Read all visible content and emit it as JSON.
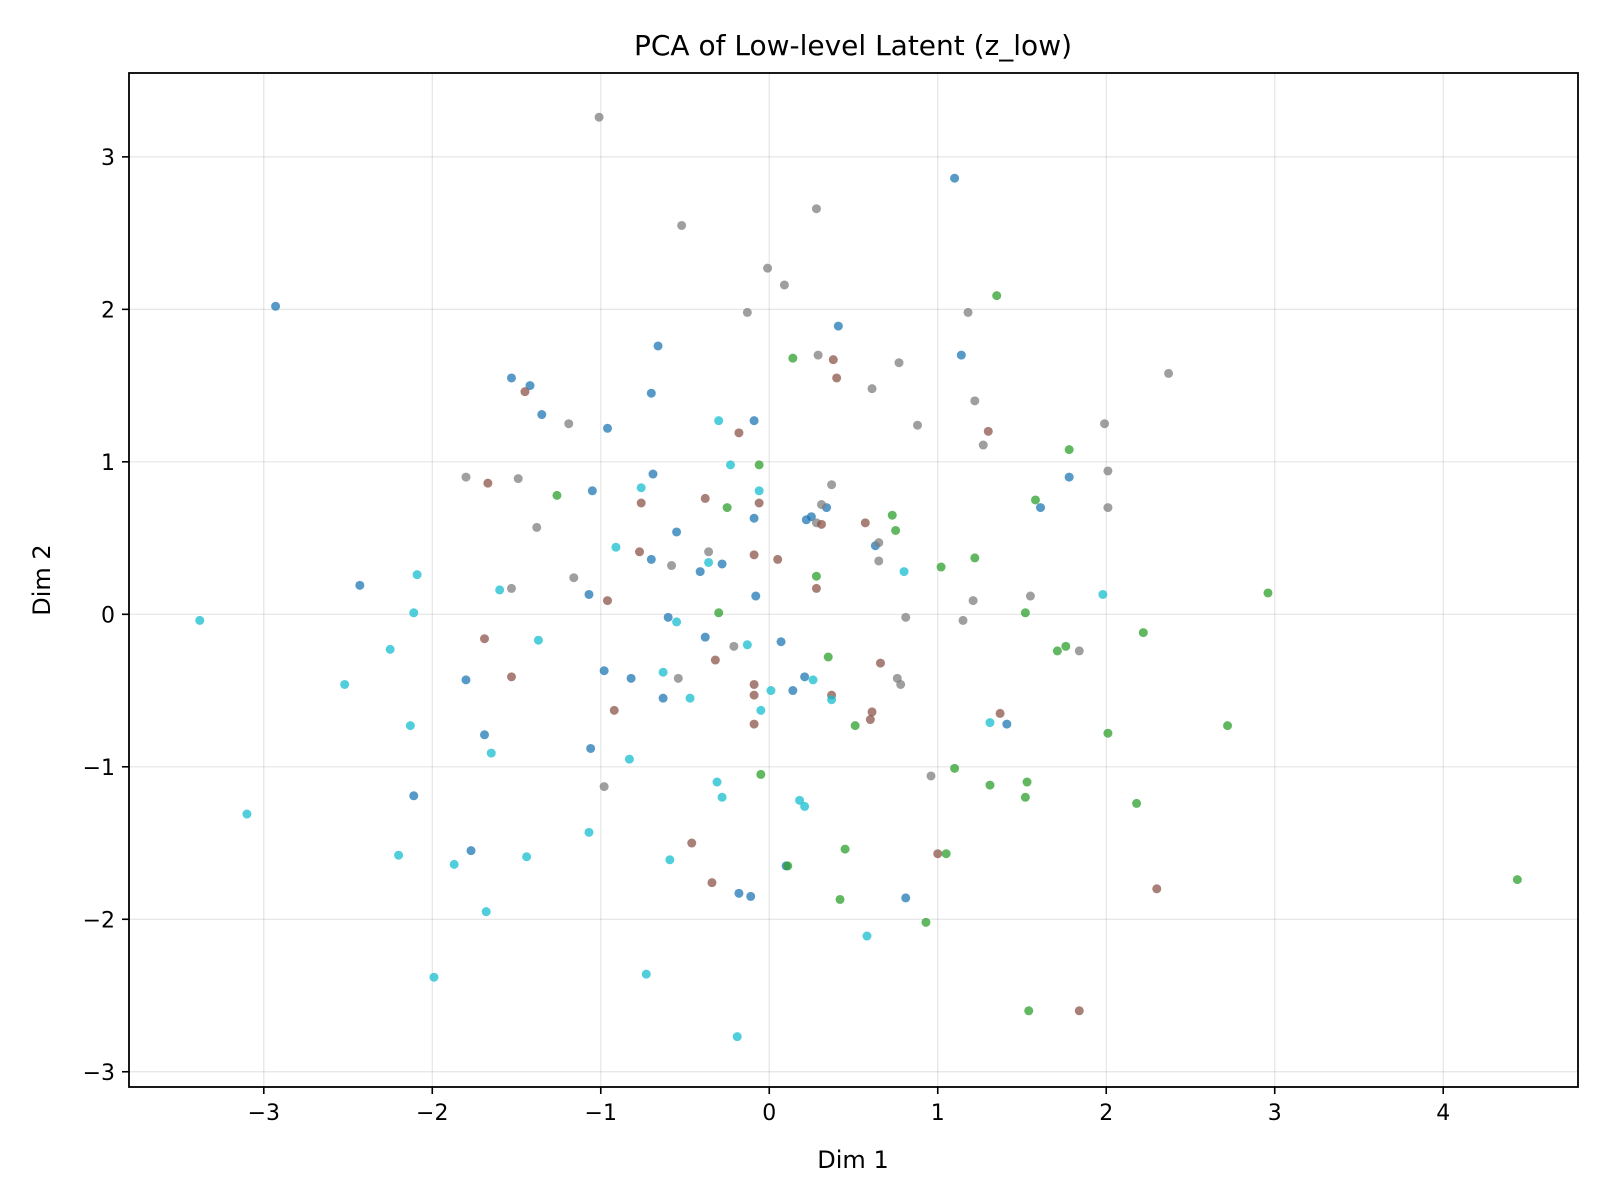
{
  "chart_data": {
    "type": "scatter",
    "title": "PCA of Low-level Latent (z_low)",
    "xlabel": "Dim 1",
    "ylabel": "Dim 2",
    "xlim": [
      -3.8,
      4.8
    ],
    "ylim": [
      -3.1,
      3.55
    ],
    "xticks": [
      -3,
      -2,
      -1,
      0,
      1,
      2,
      3,
      4
    ],
    "yticks": [
      -3,
      -2,
      -1,
      0,
      1,
      2,
      3
    ],
    "grid": true,
    "legend": "none",
    "series": [
      {
        "color": "#1f77b4",
        "points": [
          [
            -2.93,
            2.02
          ],
          [
            1.1,
            2.86
          ],
          [
            0.41,
            1.89
          ],
          [
            -0.66,
            1.76
          ],
          [
            1.14,
            1.7
          ],
          [
            -1.53,
            1.55
          ],
          [
            -1.42,
            1.5
          ],
          [
            -0.7,
            1.45
          ],
          [
            -1.35,
            1.31
          ],
          [
            -0.96,
            1.22
          ],
          [
            -0.09,
            1.27
          ],
          [
            -0.69,
            0.92
          ],
          [
            -1.05,
            0.81
          ],
          [
            1.78,
            0.9
          ],
          [
            1.61,
            0.7
          ],
          [
            0.34,
            0.7
          ],
          [
            0.25,
            0.64
          ],
          [
            0.22,
            0.62
          ],
          [
            -0.09,
            0.63
          ],
          [
            0.63,
            0.45
          ],
          [
            -0.55,
            0.54
          ],
          [
            -0.7,
            0.36
          ],
          [
            -0.28,
            0.33
          ],
          [
            -0.41,
            0.28
          ],
          [
            -2.43,
            0.19
          ],
          [
            -1.07,
            0.13
          ],
          [
            -0.08,
            0.12
          ],
          [
            -0.6,
            -0.02
          ],
          [
            -0.38,
            -0.15
          ],
          [
            0.07,
            -0.18
          ],
          [
            -1.8,
            -0.43
          ],
          [
            -0.98,
            -0.37
          ],
          [
            -0.82,
            -0.42
          ],
          [
            0.21,
            -0.41
          ],
          [
            0.14,
            -0.5
          ],
          [
            -0.63,
            -0.55
          ],
          [
            1.41,
            -0.72
          ],
          [
            -1.69,
            -0.79
          ],
          [
            -1.06,
            -0.88
          ],
          [
            -2.11,
            -1.19
          ],
          [
            -1.77,
            -1.55
          ],
          [
            0.1,
            -1.65
          ],
          [
            0.81,
            -1.86
          ],
          [
            -0.18,
            -1.83
          ],
          [
            -0.11,
            -1.85
          ]
        ]
      },
      {
        "color": "#7f7f7f",
        "points": [
          [
            -1.01,
            3.26
          ],
          [
            -0.52,
            2.55
          ],
          [
            0.28,
            2.66
          ],
          [
            -0.01,
            2.27
          ],
          [
            0.09,
            2.16
          ],
          [
            -0.13,
            1.98
          ],
          [
            1.18,
            1.98
          ],
          [
            0.29,
            1.7
          ],
          [
            0.77,
            1.65
          ],
          [
            2.37,
            1.58
          ],
          [
            0.61,
            1.48
          ],
          [
            1.22,
            1.4
          ],
          [
            -1.19,
            1.25
          ],
          [
            0.88,
            1.24
          ],
          [
            1.99,
            1.25
          ],
          [
            1.27,
            1.11
          ],
          [
            -1.8,
            0.9
          ],
          [
            -1.49,
            0.89
          ],
          [
            2.01,
            0.94
          ],
          [
            0.37,
            0.85
          ],
          [
            0.31,
            0.72
          ],
          [
            2.01,
            0.7
          ],
          [
            0.28,
            0.6
          ],
          [
            0.65,
            0.47
          ],
          [
            -1.38,
            0.57
          ],
          [
            -0.36,
            0.41
          ],
          [
            0.65,
            0.35
          ],
          [
            -0.58,
            0.32
          ],
          [
            -1.16,
            0.24
          ],
          [
            -1.53,
            0.17
          ],
          [
            1.55,
            0.12
          ],
          [
            1.21,
            0.09
          ],
          [
            0.81,
            -0.02
          ],
          [
            1.15,
            -0.04
          ],
          [
            -0.21,
            -0.21
          ],
          [
            1.84,
            -0.24
          ],
          [
            -0.54,
            -0.42
          ],
          [
            0.76,
            -0.42
          ],
          [
            0.78,
            -0.46
          ],
          [
            -0.98,
            -1.13
          ],
          [
            0.96,
            -1.06
          ]
        ]
      },
      {
        "color": "#2ca02c",
        "points": [
          [
            1.35,
            2.09
          ],
          [
            0.14,
            1.68
          ],
          [
            1.78,
            1.08
          ],
          [
            -0.06,
            0.98
          ],
          [
            -1.26,
            0.78
          ],
          [
            -0.25,
            0.7
          ],
          [
            1.58,
            0.75
          ],
          [
            0.73,
            0.65
          ],
          [
            0.75,
            0.55
          ],
          [
            1.22,
            0.37
          ],
          [
            1.02,
            0.31
          ],
          [
            0.28,
            0.25
          ],
          [
            2.96,
            0.14
          ],
          [
            -0.3,
            0.01
          ],
          [
            1.52,
            0.01
          ],
          [
            2.22,
            -0.12
          ],
          [
            1.76,
            -0.21
          ],
          [
            1.71,
            -0.24
          ],
          [
            0.35,
            -0.28
          ],
          [
            2.72,
            -0.73
          ],
          [
            0.51,
            -0.73
          ],
          [
            2.01,
            -0.78
          ],
          [
            1.1,
            -1.01
          ],
          [
            -0.05,
            -1.05
          ],
          [
            1.31,
            -1.12
          ],
          [
            1.53,
            -1.1
          ],
          [
            1.52,
            -1.2
          ],
          [
            2.18,
            -1.24
          ],
          [
            0.45,
            -1.54
          ],
          [
            1.05,
            -1.57
          ],
          [
            4.44,
            -1.74
          ],
          [
            0.42,
            -1.87
          ],
          [
            0.93,
            -2.02
          ],
          [
            1.54,
            -2.6
          ],
          [
            0.11,
            -1.65
          ]
        ]
      },
      {
        "color": "#8c564b",
        "points": [
          [
            0.38,
            1.67
          ],
          [
            0.4,
            1.55
          ],
          [
            -1.45,
            1.46
          ],
          [
            -0.18,
            1.19
          ],
          [
            1.3,
            1.2
          ],
          [
            -1.67,
            0.86
          ],
          [
            -0.38,
            0.76
          ],
          [
            -0.76,
            0.73
          ],
          [
            -0.06,
            0.73
          ],
          [
            0.57,
            0.6
          ],
          [
            0.31,
            0.59
          ],
          [
            -0.77,
            0.41
          ],
          [
            -0.09,
            0.39
          ],
          [
            0.05,
            0.36
          ],
          [
            0.28,
            0.17
          ],
          [
            -0.96,
            0.09
          ],
          [
            -1.69,
            -0.16
          ],
          [
            -0.32,
            -0.3
          ],
          [
            0.66,
            -0.32
          ],
          [
            -1.53,
            -0.41
          ],
          [
            -0.09,
            -0.46
          ],
          [
            -0.09,
            -0.53
          ],
          [
            0.37,
            -0.53
          ],
          [
            -0.92,
            -0.63
          ],
          [
            0.61,
            -0.64
          ],
          [
            0.6,
            -0.69
          ],
          [
            1.37,
            -0.65
          ],
          [
            -0.09,
            -0.72
          ],
          [
            -0.46,
            -1.5
          ],
          [
            1.0,
            -1.57
          ],
          [
            -0.34,
            -1.76
          ],
          [
            2.3,
            -1.8
          ],
          [
            1.84,
            -2.6
          ]
        ]
      },
      {
        "color": "#17becf",
        "points": [
          [
            -0.3,
            1.27
          ],
          [
            -0.23,
            0.98
          ],
          [
            -0.76,
            0.83
          ],
          [
            -0.06,
            0.81
          ],
          [
            -0.91,
            0.44
          ],
          [
            -0.36,
            0.34
          ],
          [
            0.8,
            0.28
          ],
          [
            -2.09,
            0.26
          ],
          [
            -1.6,
            0.16
          ],
          [
            1.98,
            0.13
          ],
          [
            -2.11,
            0.01
          ],
          [
            -3.38,
            -0.04
          ],
          [
            -0.55,
            -0.05
          ],
          [
            -1.37,
            -0.17
          ],
          [
            -0.13,
            -0.2
          ],
          [
            -2.25,
            -0.23
          ],
          [
            -0.63,
            -0.38
          ],
          [
            -2.52,
            -0.46
          ],
          [
            0.26,
            -0.43
          ],
          [
            0.01,
            -0.5
          ],
          [
            -0.47,
            -0.55
          ],
          [
            0.37,
            -0.56
          ],
          [
            -0.05,
            -0.63
          ],
          [
            1.31,
            -0.71
          ],
          [
            -2.13,
            -0.73
          ],
          [
            -1.65,
            -0.91
          ],
          [
            -0.83,
            -0.95
          ],
          [
            -0.31,
            -1.1
          ],
          [
            -0.28,
            -1.2
          ],
          [
            0.18,
            -1.22
          ],
          [
            0.21,
            -1.26
          ],
          [
            -3.1,
            -1.31
          ],
          [
            -1.07,
            -1.43
          ],
          [
            -2.2,
            -1.58
          ],
          [
            -1.44,
            -1.59
          ],
          [
            -0.59,
            -1.61
          ],
          [
            -1.87,
            -1.64
          ],
          [
            -1.68,
            -1.95
          ],
          [
            0.58,
            -2.11
          ],
          [
            -1.99,
            -2.38
          ],
          [
            -0.73,
            -2.36
          ],
          [
            -0.19,
            -2.77
          ]
        ]
      }
    ]
  }
}
